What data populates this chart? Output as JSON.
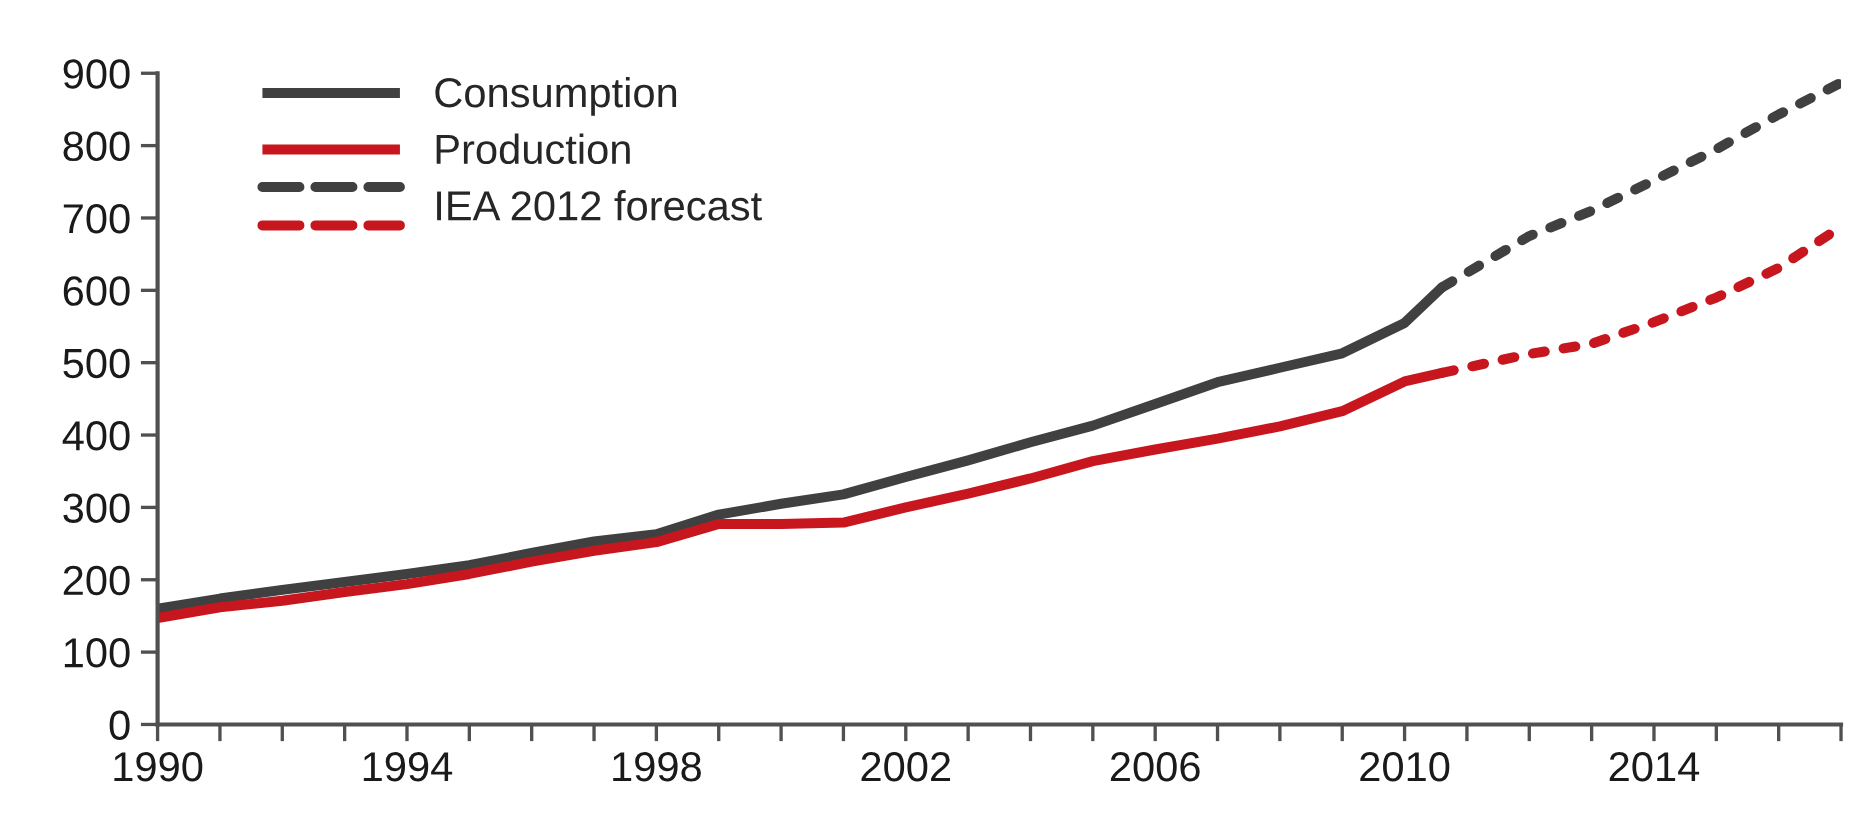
{
  "chart_data": {
    "type": "line",
    "series": [
      {
        "name": "Consumption",
        "color": "#404040",
        "line_style": "solid",
        "x": [
          1990,
          1991,
          1992,
          1993,
          1994,
          1995,
          1996,
          1997,
          1998,
          1999,
          2000,
          2001,
          2002,
          2003,
          2004,
          2005,
          2006,
          2007,
          2008,
          2009,
          2010,
          2010.6
        ],
        "values": [
          160,
          174,
          186,
          197,
          208,
          220,
          237,
          253,
          263,
          290,
          305,
          318,
          342,
          365,
          390,
          413,
          443,
          473,
          493,
          513,
          555,
          604
        ]
      },
      {
        "name": "Production",
        "color": "#c8161e",
        "line_style": "solid",
        "x": [
          1990,
          1991,
          1992,
          1993,
          1994,
          1995,
          1996,
          1997,
          1998,
          1999,
          2000,
          2001,
          2002,
          2003,
          2004,
          2005,
          2006,
          2007,
          2008,
          2009,
          2010,
          2010.6
        ],
        "values": [
          147,
          162,
          171,
          183,
          194,
          208,
          225,
          240,
          252,
          277,
          277,
          279,
          300,
          319,
          340,
          364,
          380,
          395,
          412,
          433,
          474,
          486
        ]
      },
      {
        "name": "IEA 2012 forecast",
        "color": "#404040",
        "line_style": "dashed",
        "x": [
          2010.6,
          2012,
          2013,
          2014,
          2015,
          2016,
          2017
        ],
        "values": [
          604,
          675,
          710,
          752,
          795,
          843,
          887
        ]
      },
      {
        "color": "#c8161e",
        "line_style": "dashed",
        "x": [
          2010.6,
          2012,
          2013,
          2014,
          2015,
          2016,
          2017
        ],
        "values": [
          486,
          512,
          526,
          556,
          590,
          631,
          688
        ]
      }
    ],
    "xlim": [
      1990,
      2017
    ],
    "xticks": [
      1990,
      {
        "value": 1991,
        "label": null
      },
      {
        "value": 1992,
        "label": null
      },
      {
        "value": 1993,
        "label": null
      },
      1994,
      {
        "value": 1995,
        "label": null
      },
      {
        "value": 1996,
        "label": null
      },
      {
        "value": 1997,
        "label": null
      },
      1998,
      {
        "value": 1999,
        "label": null
      },
      {
        "value": 2000,
        "label": null
      },
      {
        "value": 2001,
        "label": null
      },
      2002,
      {
        "value": 2003,
        "label": null
      },
      {
        "value": 2004,
        "label": null
      },
      {
        "value": 2005,
        "label": null
      },
      2006,
      {
        "value": 2007,
        "label": null
      },
      {
        "value": 2008,
        "label": null
      },
      {
        "value": 2009,
        "label": null
      },
      2010,
      {
        "value": 2011,
        "label": null
      },
      {
        "value": 2012,
        "label": null
      },
      {
        "value": 2013,
        "label": null
      },
      2014,
      {
        "value": 2015,
        "label": null
      },
      {
        "value": 2016,
        "label": null
      },
      {
        "value": 2017,
        "label": null
      }
    ],
    "ylim": [
      0,
      900
    ],
    "yticks": [
      0,
      100,
      200,
      300,
      400,
      500,
      600,
      700,
      800,
      900
    ],
    "grid": false,
    "legend": "top left"
  }
}
